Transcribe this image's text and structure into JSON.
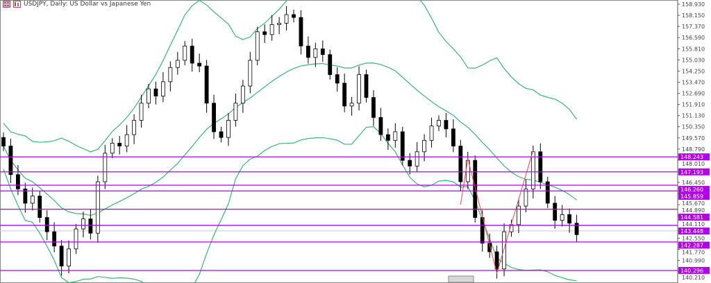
{
  "window": {
    "title": "USDJPY, Daily:  US Dollar vs Japanese Yen",
    "icons": [
      "window-grid-icon",
      "chart-type-icon"
    ]
  },
  "colors": {
    "levels": "#b000e8",
    "bands": "#3cb371",
    "zigzag": "#ff4040",
    "bull": "#ffffff",
    "bear": "#000000",
    "current_price_line": "#c8c8c8"
  },
  "chart_data": {
    "type": "candlestick",
    "symbol": "USDJPY",
    "timeframe": "Daily",
    "ylim": [
      139.5,
      159.2
    ],
    "y_ticks": [
      "158.930",
      "158.150",
      "157.370",
      "156.590",
      "155.810",
      "155.030",
      "154.250",
      "153.470",
      "152.690",
      "151.910",
      "151.130",
      "150.350",
      "149.570",
      "148.790",
      "148.010",
      "146.450",
      "145.670",
      "144.890",
      "144.110",
      "142.550",
      "141.770",
      "140.990",
      "140.210"
    ],
    "levels": [
      "148.243",
      "147.193",
      "146.260",
      "145.859",
      "144.581",
      "143.448",
      "142.287",
      "140.296"
    ],
    "current_price": 143.06,
    "closes": [
      149.0,
      147.0,
      146.0,
      145.0,
      145.5,
      144.0,
      143.0,
      142.0,
      140.6,
      141.8,
      143.2,
      143.9,
      142.9,
      146.5,
      148.5,
      149.2,
      149.0,
      149.8,
      150.8,
      152.0,
      153.0,
      152.5,
      153.5,
      154.5,
      155.0,
      156.0,
      154.8,
      154.6,
      152.0,
      150.0,
      149.6,
      150.8,
      152.0,
      153.2,
      155.0,
      157.0,
      156.8,
      157.5,
      157.6,
      158.2,
      158.0,
      156.0,
      155.2,
      155.8,
      155.4,
      154.0,
      153.4,
      151.8,
      152.0,
      154.0,
      152.4,
      151.0,
      149.8,
      149.4,
      150.0,
      148.0,
      147.6,
      148.6,
      149.4,
      150.4,
      150.8,
      150.2,
      149.0,
      146.5,
      148.0,
      144.0,
      142.2,
      141.6,
      140.4,
      143.0,
      143.5,
      144.8,
      146.0,
      148.6,
      146.5,
      145.0,
      143.8,
      144.2,
      143.6,
      142.8
    ],
    "bollinger": {
      "period": 20,
      "deviations": 2
    },
    "zigzag": [
      [
        63,
        144.9
      ],
      [
        64,
        148.1
      ],
      [
        68,
        140.1
      ],
      [
        73,
        148.7
      ]
    ]
  }
}
